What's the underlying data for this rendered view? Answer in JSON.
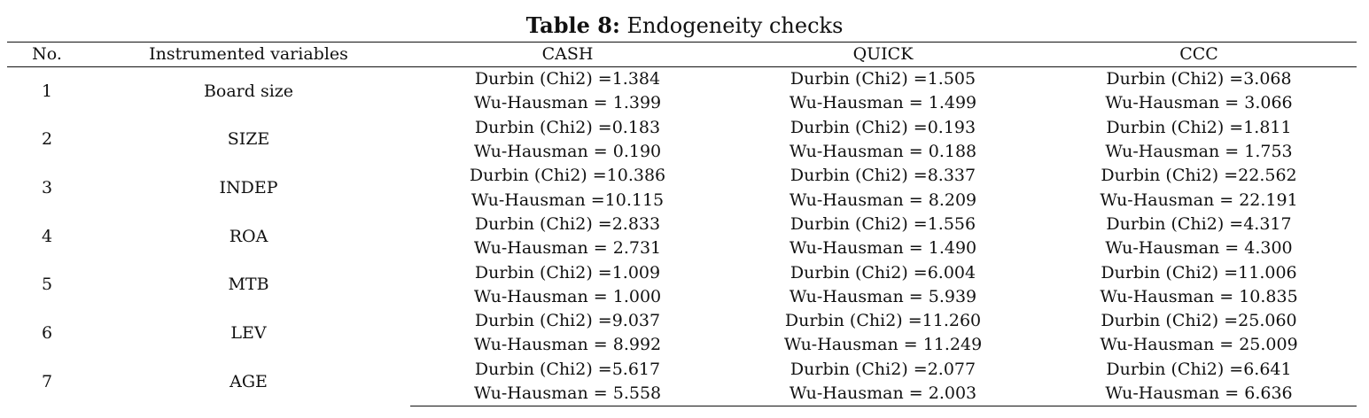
{
  "caption": {
    "label": "Table 8:",
    "title": "Endogeneity checks"
  },
  "table": {
    "headers": {
      "no": "No.",
      "variable": "Instrumented variables",
      "cash": "CASH",
      "quick": "QUICK",
      "ccc": "CCC"
    },
    "rows": [
      {
        "no": "1",
        "variable": "Board size",
        "cash": {
          "durbin": "Durbin (Chi2) =1.384",
          "wu": "Wu-Hausman = 1.399"
        },
        "quick": {
          "durbin": "Durbin (Chi2) =1.505",
          "wu": "Wu-Hausman = 1.499"
        },
        "ccc": {
          "durbin": "Durbin (Chi2) =3.068",
          "wu": "Wu-Hausman = 3.066"
        }
      },
      {
        "no": "2",
        "variable": "SIZE",
        "cash": {
          "durbin": "Durbin (Chi2) =0.183",
          "wu": "Wu-Hausman = 0.190"
        },
        "quick": {
          "durbin": "Durbin (Chi2) =0.193",
          "wu": "Wu-Hausman = 0.188"
        },
        "ccc": {
          "durbin": "Durbin (Chi2) =1.811",
          "wu": "Wu-Hausman = 1.753"
        }
      },
      {
        "no": "3",
        "variable": "INDEP",
        "cash": {
          "durbin": "Durbin (Chi2) =10.386",
          "wu": "Wu-Hausman =10.115"
        },
        "quick": {
          "durbin": "Durbin (Chi2) =8.337",
          "wu": "Wu-Hausman = 8.209"
        },
        "ccc": {
          "durbin": "Durbin (Chi2) =22.562",
          "wu": "Wu-Hausman = 22.191"
        }
      },
      {
        "no": "4",
        "variable": "ROA",
        "cash": {
          "durbin": "Durbin (Chi2) =2.833",
          "wu": "Wu-Hausman = 2.731"
        },
        "quick": {
          "durbin": "Durbin (Chi2) =1.556",
          "wu": "Wu-Hausman = 1.490"
        },
        "ccc": {
          "durbin": "Durbin (Chi2) =4.317",
          "wu": "Wu-Hausman = 4.300"
        }
      },
      {
        "no": "5",
        "variable": "MTB",
        "cash": {
          "durbin": "Durbin (Chi2) =1.009",
          "wu": "Wu-Hausman = 1.000"
        },
        "quick": {
          "durbin": "Durbin (Chi2) =6.004",
          "wu": "Wu-Hausman = 5.939"
        },
        "ccc": {
          "durbin": "Durbin (Chi2) =11.006",
          "wu": "Wu-Hausman = 10.835"
        }
      },
      {
        "no": "6",
        "variable": "LEV",
        "cash": {
          "durbin": "Durbin (Chi2) =9.037",
          "wu": "Wu-Hausman = 8.992"
        },
        "quick": {
          "durbin": "Durbin (Chi2) =11.260",
          "wu": "Wu-Hausman = 11.249"
        },
        "ccc": {
          "durbin": "Durbin (Chi2) =25.060",
          "wu": "Wu-Hausman = 25.009"
        }
      },
      {
        "no": "7",
        "variable": "AGE",
        "cash": {
          "durbin": "Durbin (Chi2) =5.617",
          "wu": "Wu-Hausman = 5.558"
        },
        "quick": {
          "durbin": "Durbin (Chi2) =2.077",
          "wu": "Wu-Hausman = 2.003"
        },
        "ccc": {
          "durbin": "Durbin (Chi2) =6.641",
          "wu": "Wu-Hausman = 6.636"
        }
      }
    ]
  }
}
